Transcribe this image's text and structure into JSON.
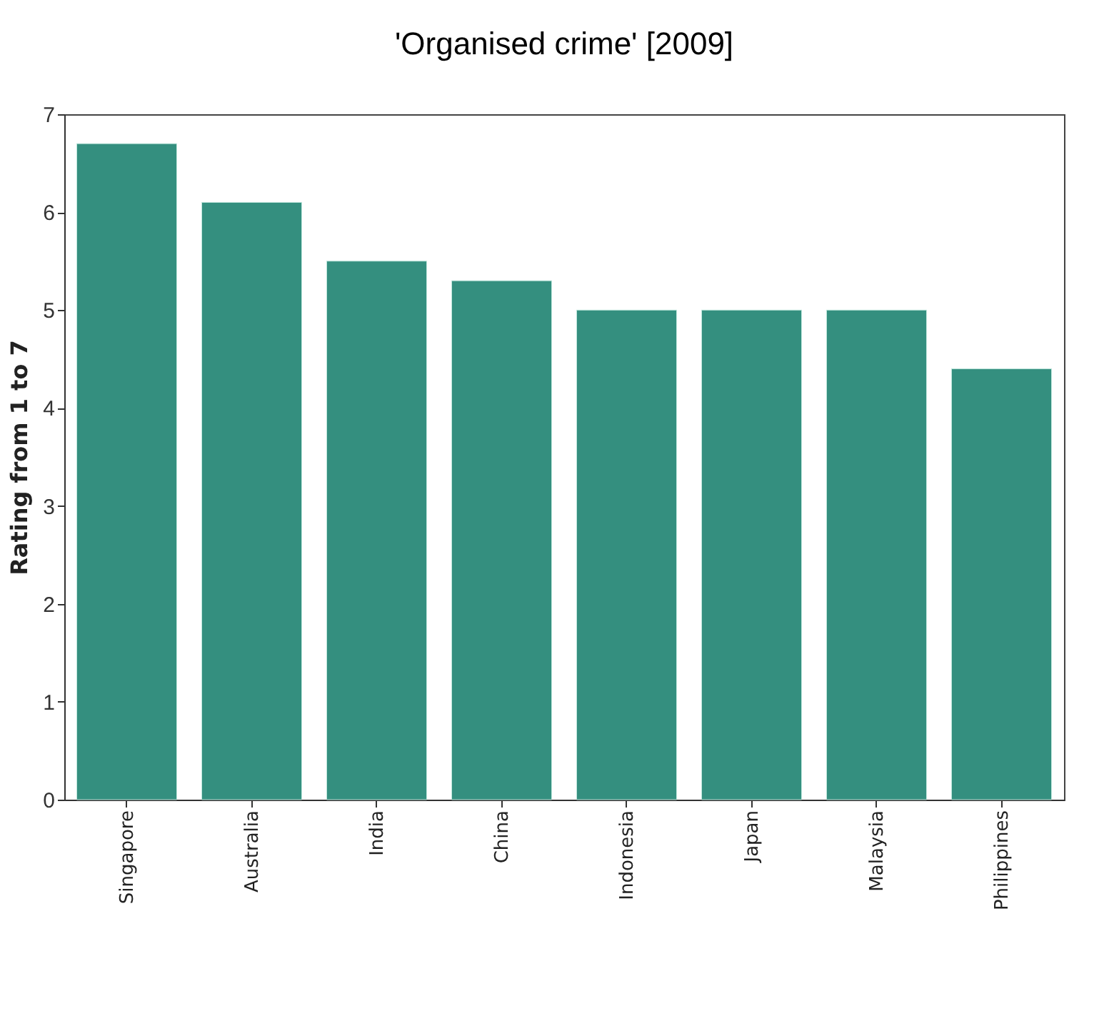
{
  "chart_data": {
    "type": "bar",
    "title": "'Organised crime' [2009]",
    "ylabel": "Rating from 1 to 7",
    "categories": [
      "Singapore",
      "Australia",
      "India",
      "China",
      "Indonesia",
      "Japan",
      "Malaysia",
      "Philippines"
    ],
    "values": [
      6.7,
      6.1,
      5.5,
      5.3,
      5.0,
      5.0,
      5.0,
      4.4
    ],
    "color": "#348f7f",
    "ylim": [
      0,
      7
    ],
    "yticks": [
      0,
      1,
      2,
      3,
      4,
      5,
      6,
      7
    ],
    "grid": false
  }
}
